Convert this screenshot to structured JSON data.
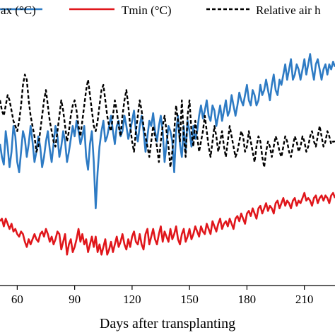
{
  "chart_data": {
    "type": "line",
    "title": "",
    "xlabel": "Days after transplanting",
    "ylabel": "",
    "xlim": [
      51,
      226
    ],
    "ylim": [
      0,
      100
    ],
    "x_ticks": [
      60,
      90,
      120,
      150,
      180,
      210
    ],
    "x_tick_labels": [
      "60",
      "90",
      "120",
      "150",
      "180",
      "210"
    ],
    "grid": false,
    "legend_position": "top",
    "series": [
      {
        "name": "Tmax (°C)",
        "legend_visible_text": "ax (°C)",
        "color": "#2E7BC4",
        "x": [
          51,
          52,
          53,
          54,
          55,
          56,
          57,
          58,
          59,
          60,
          61,
          62,
          63,
          64,
          65,
          66,
          67,
          68,
          69,
          70,
          71,
          72,
          73,
          74,
          75,
          76,
          77,
          78,
          79,
          80,
          81,
          82,
          83,
          84,
          85,
          86,
          87,
          88,
          89,
          90,
          91,
          92,
          93,
          94,
          95,
          96,
          97,
          98,
          99,
          100,
          101,
          102,
          103,
          104,
          105,
          106,
          107,
          108,
          109,
          110,
          111,
          112,
          113,
          114,
          115,
          116,
          117,
          118,
          119,
          120,
          121,
          122,
          123,
          124,
          125,
          126,
          127,
          128,
          129,
          130,
          131,
          132,
          133,
          134,
          135,
          136,
          137,
          138,
          139,
          140,
          141,
          142,
          143,
          144,
          145,
          146,
          147,
          148,
          149,
          150,
          151,
          152,
          153,
          154,
          155,
          156,
          157,
          158,
          159,
          160,
          161,
          162,
          163,
          164,
          165,
          166,
          167,
          168,
          169,
          170,
          171,
          172,
          173,
          174,
          175,
          176,
          177,
          178,
          179,
          180,
          181,
          182,
          183,
          184,
          185,
          186,
          187,
          188,
          189,
          190,
          191,
          192,
          193,
          194,
          195,
          196,
          197,
          198,
          199,
          200,
          201,
          202,
          203,
          204,
          205,
          206,
          207,
          208,
          209,
          210,
          211,
          212,
          213,
          214,
          215,
          216,
          217,
          218,
          219,
          220,
          221,
          222,
          223,
          224,
          225,
          226
        ],
        "y": [
          55,
          50,
          47,
          60,
          54,
          46,
          52,
          62,
          58,
          48,
          44,
          52,
          60,
          57,
          50,
          55,
          62,
          56,
          48,
          52,
          58,
          54,
          46,
          50,
          56,
          60,
          53,
          48,
          55,
          62,
          58,
          50,
          54,
          60,
          56,
          48,
          52,
          57,
          62,
          58,
          64,
          60,
          55,
          58,
          62,
          50,
          45,
          55,
          60,
          48,
          30,
          44,
          54,
          60,
          64,
          56,
          58,
          62,
          66,
          60,
          55,
          62,
          64,
          58,
          60,
          66,
          62,
          57,
          60,
          64,
          68,
          60,
          56,
          62,
          66,
          60,
          52,
          58,
          64,
          62,
          67,
          60,
          56,
          62,
          66,
          60,
          48,
          55,
          62,
          60,
          56,
          44,
          60,
          66,
          55,
          50,
          62,
          52,
          64,
          60,
          54,
          62,
          57,
          60,
          66,
          70,
          65,
          68,
          72,
          66,
          64,
          70,
          68,
          62,
          66,
          70,
          64,
          68,
          72,
          66,
          68,
          74,
          70,
          66,
          70,
          75,
          72,
          70,
          74,
          78,
          72,
          70,
          76,
          74,
          70,
          72,
          78,
          74,
          76,
          80,
          76,
          72,
          78,
          82,
          76,
          74,
          80,
          78,
          82,
          86,
          80,
          84,
          88,
          80,
          82,
          86,
          84,
          80,
          84,
          88,
          82,
          86,
          90,
          84,
          80,
          86,
          88,
          84,
          80,
          84,
          86,
          82,
          86,
          84,
          87,
          85
        ]
      },
      {
        "name": "Tmin (°C)",
        "color": "#E0161B",
        "x": [
          51,
          52,
          53,
          54,
          55,
          56,
          57,
          58,
          59,
          60,
          61,
          62,
          63,
          64,
          65,
          66,
          67,
          68,
          69,
          70,
          71,
          72,
          73,
          74,
          75,
          76,
          77,
          78,
          79,
          80,
          81,
          82,
          83,
          84,
          85,
          86,
          87,
          88,
          89,
          90,
          91,
          92,
          93,
          94,
          95,
          96,
          97,
          98,
          99,
          100,
          101,
          102,
          103,
          104,
          105,
          106,
          107,
          108,
          109,
          110,
          111,
          112,
          113,
          114,
          115,
          116,
          117,
          118,
          119,
          120,
          121,
          122,
          123,
          124,
          125,
          126,
          127,
          128,
          129,
          130,
          131,
          132,
          133,
          134,
          135,
          136,
          137,
          138,
          139,
          140,
          141,
          142,
          143,
          144,
          145,
          146,
          147,
          148,
          149,
          150,
          151,
          152,
          153,
          154,
          155,
          156,
          157,
          158,
          159,
          160,
          161,
          162,
          163,
          164,
          165,
          166,
          167,
          168,
          169,
          170,
          171,
          172,
          173,
          174,
          175,
          176,
          177,
          178,
          179,
          180,
          181,
          182,
          183,
          184,
          185,
          186,
          187,
          188,
          189,
          190,
          191,
          192,
          193,
          194,
          195,
          196,
          197,
          198,
          199,
          200,
          201,
          202,
          203,
          204,
          205,
          206,
          207,
          208,
          209,
          210,
          211,
          212,
          213,
          214,
          215,
          216,
          217,
          218,
          219,
          220,
          221,
          222,
          223,
          224,
          225,
          226
        ],
        "y": [
          25,
          26,
          23,
          26,
          24,
          22,
          24,
          21,
          22,
          20,
          19,
          21,
          20,
          17,
          15,
          18,
          16,
          18,
          20,
          18,
          17,
          20,
          21,
          19,
          22,
          20,
          17,
          19,
          16,
          18,
          21,
          20,
          14,
          17,
          20,
          12,
          16,
          18,
          13,
          15,
          18,
          22,
          17,
          20,
          16,
          18,
          13,
          16,
          19,
          15,
          19,
          13,
          16,
          12,
          15,
          18,
          12,
          14,
          17,
          13,
          16,
          19,
          15,
          17,
          20,
          16,
          14,
          18,
          15,
          19,
          21,
          17,
          16,
          20,
          16,
          14,
          20,
          22,
          16,
          19,
          22,
          18,
          16,
          20,
          23,
          17,
          21,
          19,
          17,
          22,
          18,
          20,
          23,
          18,
          16,
          20,
          22,
          17,
          19,
          22,
          18,
          20,
          23,
          21,
          19,
          23,
          21,
          20,
          24,
          22,
          20,
          25,
          23,
          21,
          24,
          26,
          22,
          24,
          25,
          23,
          26,
          24,
          22,
          26,
          27,
          25,
          28,
          26,
          24,
          28,
          29,
          27,
          30,
          28,
          26,
          30,
          31,
          28,
          30,
          32,
          29,
          31,
          30,
          28,
          32,
          33,
          30,
          32,
          34,
          31,
          33,
          32,
          30,
          33,
          34,
          31,
          33,
          32,
          34,
          36,
          33,
          34,
          33,
          31,
          34,
          35,
          32,
          34,
          35,
          33,
          35,
          34,
          32,
          35,
          36,
          34
        ]
      },
      {
        "name": "Relative air humidity",
        "legend_visible_text": "Relative air h",
        "color": "#000000",
        "dashed": true,
        "x": [
          51,
          52,
          53,
          54,
          55,
          56,
          57,
          58,
          59,
          60,
          61,
          62,
          63,
          64,
          65,
          66,
          67,
          68,
          69,
          70,
          71,
          72,
          73,
          74,
          75,
          76,
          77,
          78,
          79,
          80,
          81,
          82,
          83,
          84,
          85,
          86,
          87,
          88,
          89,
          90,
          91,
          92,
          93,
          94,
          95,
          96,
          97,
          98,
          99,
          100,
          101,
          102,
          103,
          104,
          105,
          106,
          107,
          108,
          109,
          110,
          111,
          112,
          113,
          114,
          115,
          116,
          117,
          118,
          119,
          120,
          121,
          122,
          123,
          124,
          125,
          126,
          127,
          128,
          129,
          130,
          131,
          132,
          133,
          134,
          135,
          136,
          137,
          138,
          139,
          140,
          141,
          142,
          143,
          144,
          145,
          146,
          147,
          148,
          149,
          150,
          151,
          152,
          153,
          154,
          155,
          156,
          157,
          158,
          159,
          160,
          161,
          162,
          163,
          164,
          165,
          166,
          167,
          168,
          169,
          170,
          171,
          172,
          173,
          174,
          175,
          176,
          177,
          178,
          179,
          180,
          181,
          182,
          183,
          184,
          185,
          186,
          187,
          188,
          189,
          190,
          191,
          192,
          193,
          194,
          195,
          196,
          197,
          198,
          199,
          200,
          201,
          202,
          203,
          204,
          205,
          206,
          207,
          208,
          209,
          210,
          211,
          212,
          213,
          214,
          215,
          216,
          217,
          218,
          219,
          220,
          221,
          222,
          223,
          224,
          225,
          226
        ],
        "y": [
          72,
          68,
          66,
          70,
          74,
          72,
          68,
          64,
          62,
          60,
          64,
          70,
          78,
          82,
          80,
          72,
          66,
          62,
          58,
          52,
          54,
          60,
          66,
          72,
          76,
          70,
          64,
          60,
          56,
          54,
          60,
          66,
          72,
          68,
          62,
          56,
          60,
          66,
          70,
          72,
          68,
          62,
          58,
          64,
          70,
          76,
          80,
          74,
          68,
          62,
          60,
          64,
          70,
          76,
          78,
          72,
          66,
          62,
          60,
          66,
          72,
          68,
          62,
          58,
          66,
          72,
          76,
          70,
          62,
          56,
          52,
          60,
          66,
          72,
          68,
          62,
          58,
          54,
          50,
          56,
          62,
          58,
          54,
          48,
          56,
          62,
          66,
          60,
          54,
          46,
          52,
          60,
          70,
          64,
          56,
          72,
          58,
          50,
          66,
          72,
          60,
          54,
          64,
          58,
          52,
          56,
          60,
          66,
          60,
          54,
          50,
          56,
          62,
          58,
          52,
          56,
          60,
          54,
          50,
          56,
          62,
          58,
          54,
          50,
          52,
          56,
          60,
          58,
          52,
          54,
          60,
          56,
          52,
          48,
          54,
          58,
          56,
          50,
          46,
          52,
          56,
          54,
          50,
          54,
          58,
          56,
          52,
          50,
          54,
          58,
          56,
          52,
          50,
          54,
          58,
          56,
          52,
          54,
          58,
          56,
          52,
          54,
          58,
          60,
          56,
          54,
          58,
          62,
          58,
          54,
          56,
          60,
          58,
          55,
          56,
          56
        ]
      }
    ]
  }
}
